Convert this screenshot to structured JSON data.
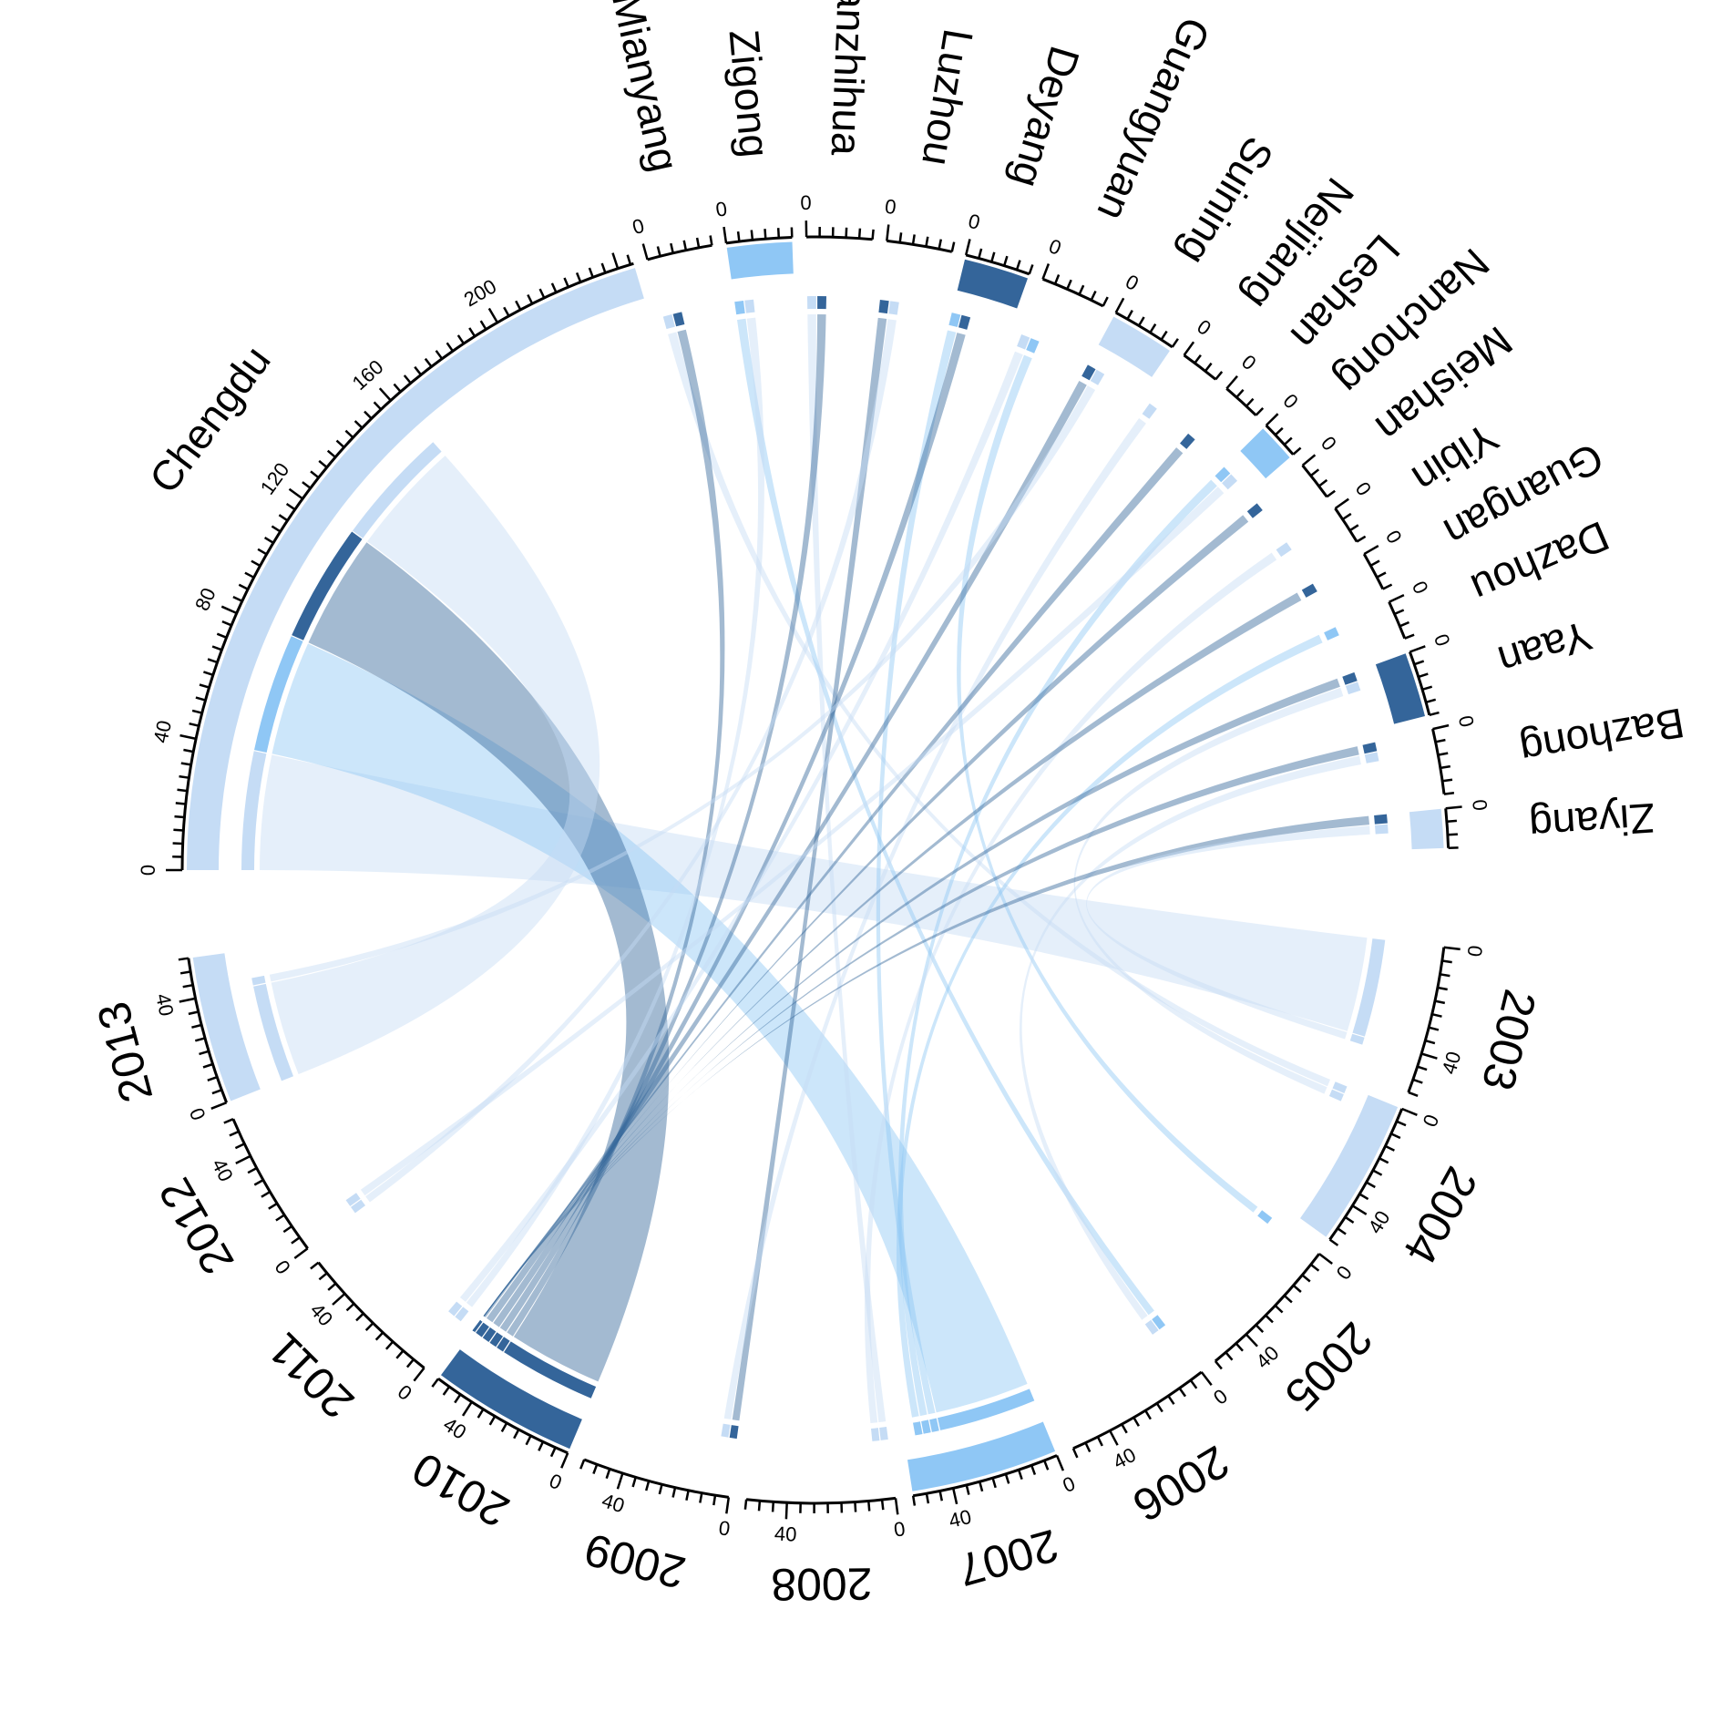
{
  "chart_data": {
    "type": "chord",
    "title": "",
    "colors": {
      "dark": "#34659a",
      "mid": "#8fc7f5",
      "light": "#c5dcf5",
      "axis": "#000000"
    },
    "groups": [
      {
        "name": "Chengdu",
        "value": 245,
        "kind": "city",
        "ticks": [
          "0",
          "40",
          "80",
          "120",
          "160",
          "200"
        ]
      },
      {
        "name": "Mianyang",
        "value": 20,
        "kind": "city",
        "ticks": [
          "0"
        ]
      },
      {
        "name": "Zigong",
        "value": 20,
        "kind": "city",
        "ticks": [
          "0"
        ]
      },
      {
        "name": "Panzhihua",
        "value": 20,
        "kind": "city",
        "ticks": [
          "0"
        ]
      },
      {
        "name": "Luzhou",
        "value": 20,
        "kind": "city",
        "ticks": [
          "0"
        ]
      },
      {
        "name": "Deyang",
        "value": 20,
        "kind": "city",
        "ticks": [
          "0"
        ]
      },
      {
        "name": "Guangyuan",
        "value": 20,
        "kind": "city",
        "ticks": [
          "0"
        ]
      },
      {
        "name": "Suining",
        "value": 20,
        "kind": "city",
        "ticks": [
          "0"
        ]
      },
      {
        "name": "Neijiang",
        "value": 12,
        "kind": "city",
        "ticks": [
          "0"
        ]
      },
      {
        "name": "Leshan",
        "value": 12,
        "kind": "city",
        "ticks": [
          "0"
        ]
      },
      {
        "name": "Nanchong",
        "value": 12,
        "kind": "city",
        "ticks": [
          "0"
        ]
      },
      {
        "name": "Meishan",
        "value": 12,
        "kind": "city",
        "ticks": [
          "0"
        ]
      },
      {
        "name": "Yibin",
        "value": 12,
        "kind": "city",
        "ticks": [
          "0"
        ]
      },
      {
        "name": "Guangan",
        "value": 12,
        "kind": "city",
        "ticks": [
          "0"
        ]
      },
      {
        "name": "Dazhou",
        "value": 12,
        "kind": "city",
        "ticks": [
          "0"
        ]
      },
      {
        "name": "Yaan",
        "value": 20,
        "kind": "city",
        "ticks": [
          "0"
        ]
      },
      {
        "name": "Bazhong",
        "value": 20,
        "kind": "city",
        "ticks": [
          "0"
        ]
      },
      {
        "name": "Ziyang",
        "value": 12,
        "kind": "city",
        "ticks": [
          "0"
        ]
      },
      {
        "name": "2003",
        "value": 55,
        "kind": "year",
        "ticks": [
          "0",
          "40"
        ]
      },
      {
        "name": "2004",
        "value": 55,
        "kind": "year",
        "ticks": [
          "0",
          "40"
        ]
      },
      {
        "name": "2005",
        "value": 55,
        "kind": "year",
        "ticks": [
          "0",
          "40"
        ]
      },
      {
        "name": "2006",
        "value": 55,
        "kind": "year",
        "ticks": [
          "0",
          "40"
        ]
      },
      {
        "name": "2007",
        "value": 55,
        "kind": "year",
        "ticks": [
          "0",
          "40"
        ]
      },
      {
        "name": "2008",
        "value": 55,
        "kind": "year",
        "ticks": [
          "0",
          "40"
        ]
      },
      {
        "name": "2009",
        "value": 55,
        "kind": "year",
        "ticks": [
          "0",
          "40"
        ]
      },
      {
        "name": "2010",
        "value": 55,
        "kind": "year",
        "ticks": [
          "0",
          "40"
        ]
      },
      {
        "name": "2011",
        "value": 55,
        "kind": "year",
        "ticks": [
          "0",
          "40"
        ]
      },
      {
        "name": "2012",
        "value": 55,
        "kind": "year",
        "ticks": [
          "0",
          "40"
        ]
      },
      {
        "name": "2013",
        "value": 55,
        "kind": "year",
        "ticks": [
          "0",
          "40"
        ]
      }
    ],
    "highlight_blocks": [
      {
        "group": "Chengdu",
        "color": "light"
      },
      {
        "group": "Zigong",
        "color": "mid"
      },
      {
        "group": "Deyang",
        "color": "dark"
      },
      {
        "group": "Suining",
        "color": "light"
      },
      {
        "group": "Nanchong",
        "color": "mid"
      },
      {
        "group": "Yaan",
        "color": "dark"
      },
      {
        "group": "Ziyang",
        "color": "light"
      },
      {
        "group": "2004",
        "color": "light"
      },
      {
        "group": "2007",
        "color": "mid"
      },
      {
        "group": "2010",
        "color": "dark"
      },
      {
        "group": "2013",
        "color": "light"
      }
    ],
    "ribbons": [
      {
        "source": "Chengdu",
        "target": "2003",
        "value": 40,
        "color": "light"
      },
      {
        "source": "Chengdu",
        "target": "2007",
        "value": 40,
        "color": "mid"
      },
      {
        "source": "Chengdu",
        "target": "2010",
        "value": 40,
        "color": "dark"
      },
      {
        "source": "Chengdu",
        "target": "2013",
        "value": 40,
        "color": "light"
      },
      {
        "source": "Mianyang",
        "target": "2004",
        "value": 3,
        "color": "light"
      },
      {
        "source": "Mianyang",
        "target": "2010",
        "value": 3,
        "color": "dark"
      },
      {
        "source": "Zigong",
        "target": "2006",
        "value": 3,
        "color": "mid"
      },
      {
        "source": "Zigong",
        "target": "2011",
        "value": 3,
        "color": "light"
      },
      {
        "source": "Panzhihua",
        "target": "2008",
        "value": 3,
        "color": "light"
      },
      {
        "source": "Panzhihua",
        "target": "2010",
        "value": 3,
        "color": "dark"
      },
      {
        "source": "Luzhou",
        "target": "2009",
        "value": 3,
        "color": "dark"
      },
      {
        "source": "Luzhou",
        "target": "2012",
        "value": 3,
        "color": "light"
      },
      {
        "source": "Deyang",
        "target": "2007",
        "value": 3,
        "color": "mid"
      },
      {
        "source": "Deyang",
        "target": "2010",
        "value": 3,
        "color": "dark"
      },
      {
        "source": "Guangyuan",
        "target": "2011",
        "value": 3,
        "color": "light"
      },
      {
        "source": "Guangyuan",
        "target": "2005",
        "value": 3,
        "color": "mid"
      },
      {
        "source": "Suining",
        "target": "2010",
        "value": 3,
        "color": "dark"
      },
      {
        "source": "Suining",
        "target": "2013",
        "value": 3,
        "color": "light"
      },
      {
        "source": "Neijiang",
        "target": "2009",
        "value": 3,
        "color": "light"
      },
      {
        "source": "Leshan",
        "target": "2010",
        "value": 3,
        "color": "dark"
      },
      {
        "source": "Nanchong",
        "target": "2007",
        "value": 3,
        "color": "mid"
      },
      {
        "source": "Nanchong",
        "target": "2012",
        "value": 3,
        "color": "light"
      },
      {
        "source": "Meishan",
        "target": "2010",
        "value": 3,
        "color": "dark"
      },
      {
        "source": "Yibin",
        "target": "2008",
        "value": 3,
        "color": "light"
      },
      {
        "source": "Guangan",
        "target": "2010",
        "value": 3,
        "color": "dark"
      },
      {
        "source": "Dazhou",
        "target": "2007",
        "value": 3,
        "color": "mid"
      },
      {
        "source": "Yaan",
        "target": "2010",
        "value": 3,
        "color": "dark"
      },
      {
        "source": "Yaan",
        "target": "2004",
        "value": 3,
        "color": "light"
      },
      {
        "source": "Bazhong",
        "target": "2010",
        "value": 3,
        "color": "dark"
      },
      {
        "source": "Bazhong",
        "target": "2006",
        "value": 3,
        "color": "light"
      },
      {
        "source": "Ziyang",
        "target": "2010",
        "value": 3,
        "color": "dark"
      },
      {
        "source": "Ziyang",
        "target": "2003",
        "value": 3,
        "color": "light"
      }
    ]
  }
}
